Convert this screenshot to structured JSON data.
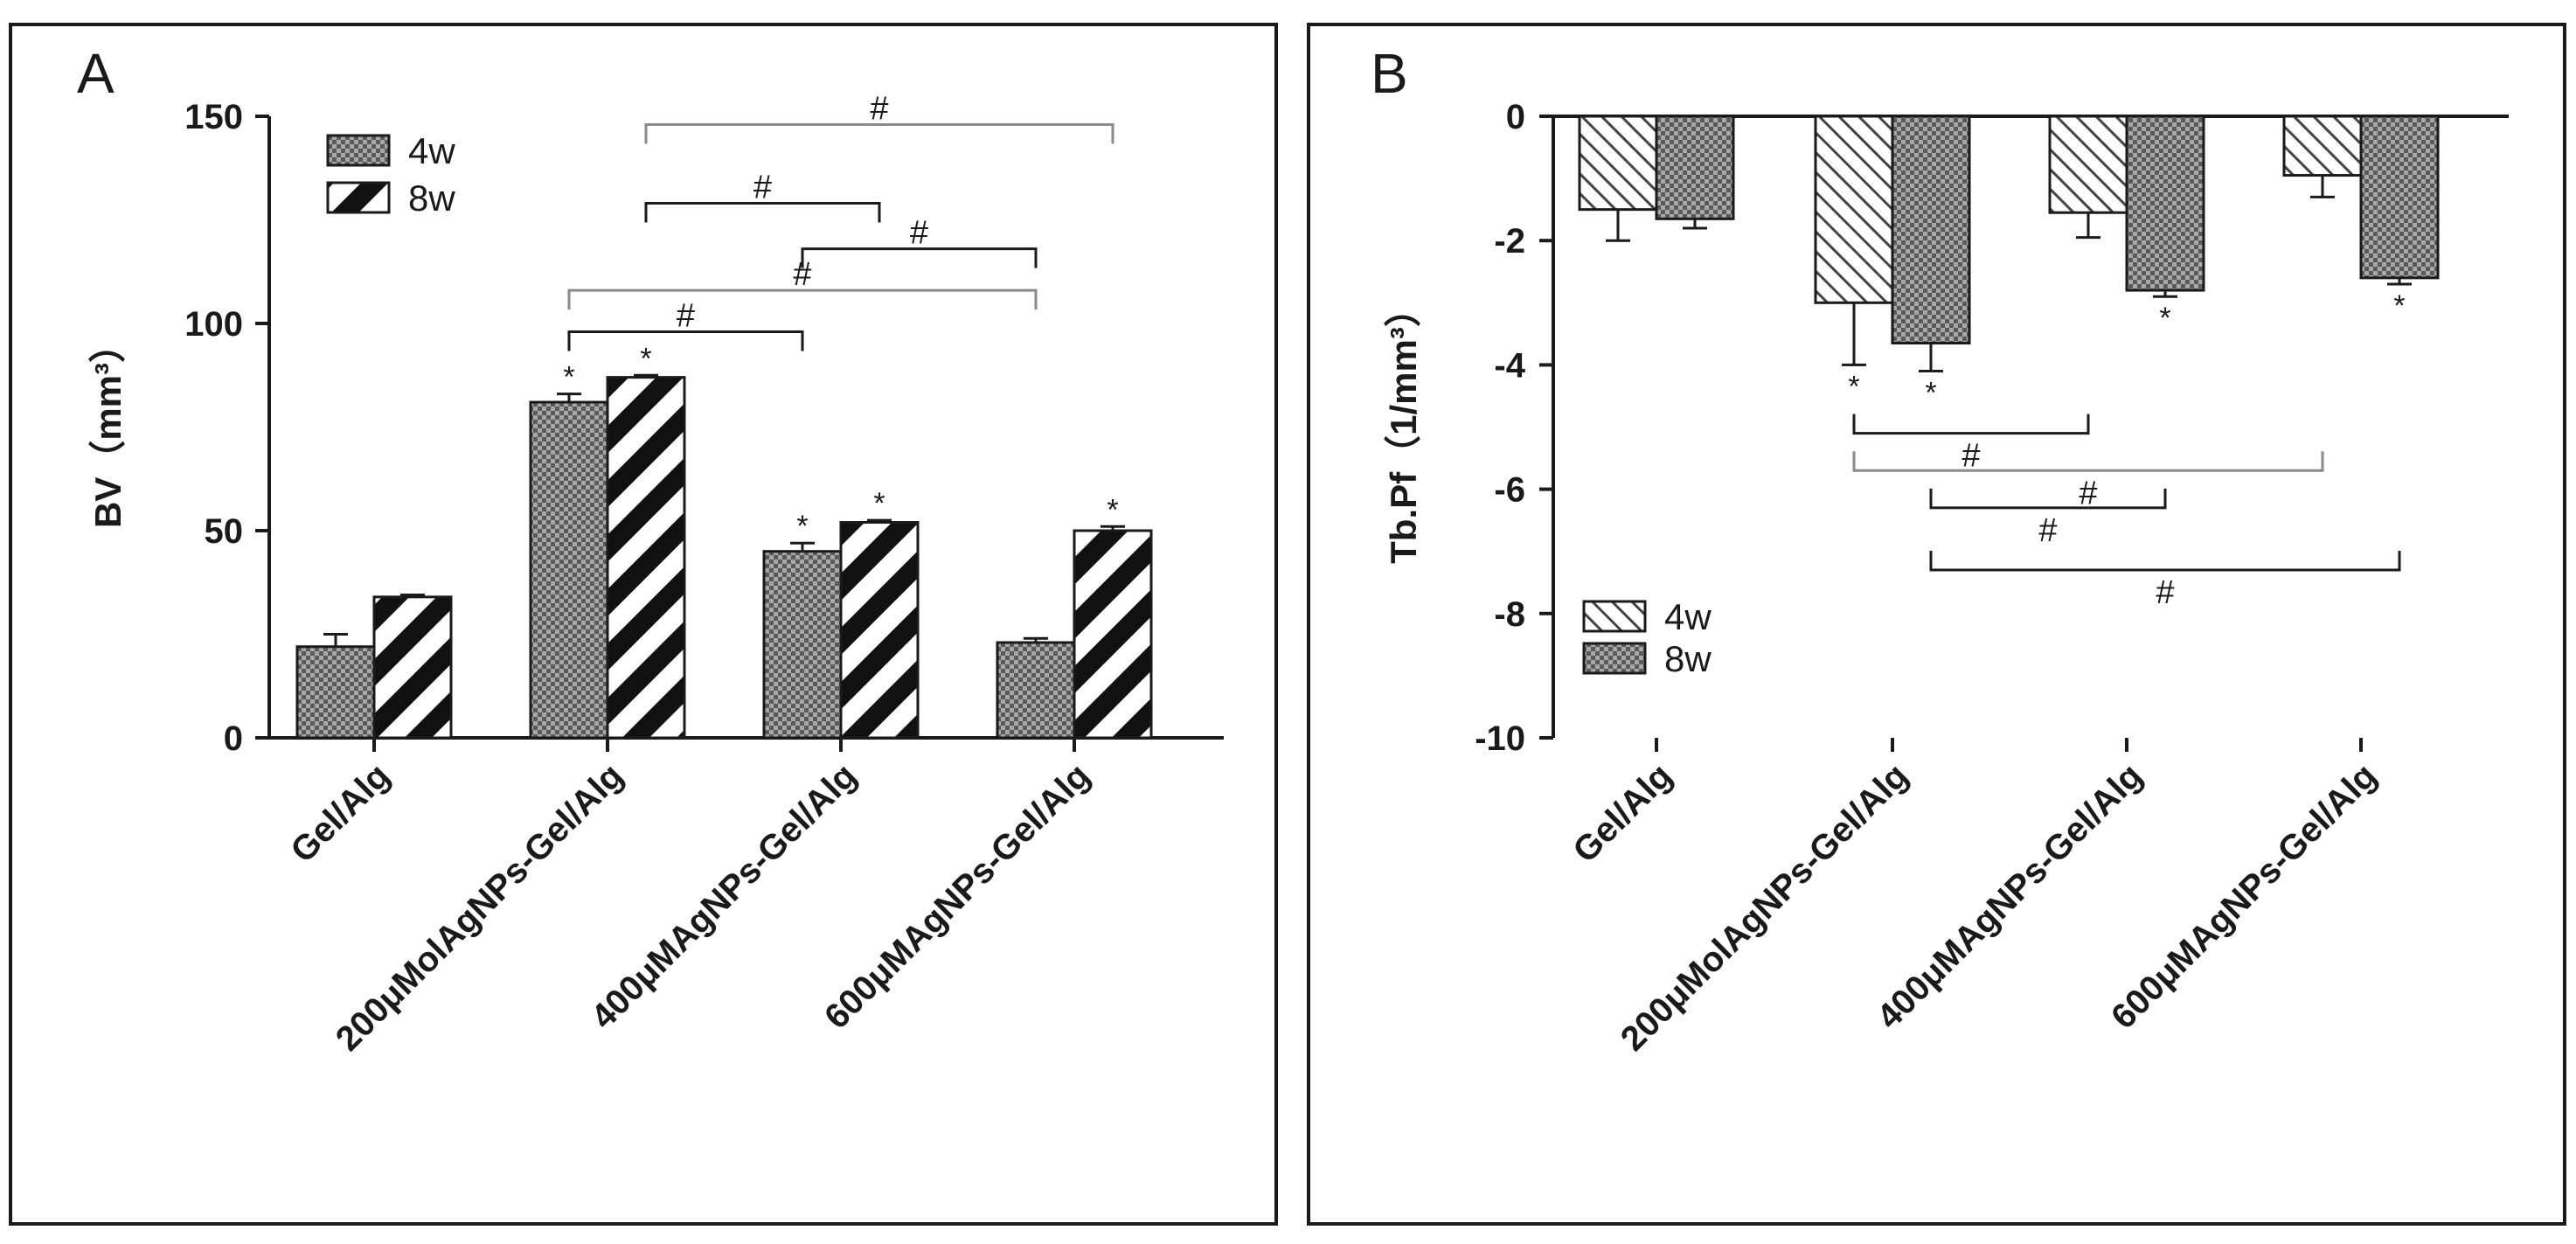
{
  "chart_data": [
    {
      "panel": "A",
      "type": "bar",
      "title": "",
      "xlabel": "",
      "ylabel": "BV（mm³）",
      "ylim": [
        0,
        150
      ],
      "yticks": [
        0,
        50,
        100,
        150
      ],
      "categories": [
        "Gel/Alg",
        "200μMolAgNPs-Gel/Alg",
        "400μMAgNPs-Gel/Alg",
        "600μMAgNPs-Gel/Alg"
      ],
      "series": [
        {
          "name": "4w",
          "pattern": "dots",
          "values": [
            22,
            81,
            45,
            23
          ],
          "errors": [
            3,
            2,
            2,
            1
          ],
          "stars": [
            "",
            "*",
            "*",
            ""
          ]
        },
        {
          "name": "8w",
          "pattern": "diagonal-thick",
          "values": [
            34,
            87,
            52,
            50
          ],
          "errors": [
            0.5,
            0.5,
            0.5,
            1
          ],
          "stars": [
            "",
            "*",
            "*",
            "*"
          ]
        }
      ],
      "legend_position": "top-left",
      "significance": [
        {
          "from": [
            1,
            1
          ],
          "to": [
            3,
            1
          ],
          "label": "#",
          "y": 148,
          "gray": true
        },
        {
          "from": [
            1,
            1
          ],
          "to": [
            2,
            1
          ],
          "label": "#",
          "y": 129,
          "gray": false
        },
        {
          "from": [
            2,
            0
          ],
          "to": [
            3,
            0
          ],
          "label": "#",
          "y": 118,
          "gray": false
        },
        {
          "from": [
            1,
            0
          ],
          "to": [
            3,
            0
          ],
          "label": "#",
          "y": 108,
          "gray": true
        },
        {
          "from": [
            1,
            0
          ],
          "to": [
            2,
            0
          ],
          "label": "#",
          "y": 98,
          "gray": false
        }
      ]
    },
    {
      "panel": "B",
      "type": "bar",
      "title": "",
      "xlabel": "",
      "ylabel": "Tb.Pf（1/mm³）",
      "ylim": [
        -10,
        0
      ],
      "yticks": [
        0,
        -2,
        -4,
        -6,
        -8,
        -10
      ],
      "categories": [
        "Gel/Alg",
        "200μMolAgNPs-Gel/Alg",
        "400μMAgNPs-Gel/Alg",
        "600μMAgNPs-Gel/Alg"
      ],
      "series": [
        {
          "name": "4w",
          "pattern": "diagonal-thin",
          "values": [
            -1.5,
            -3.0,
            -1.55,
            -0.95
          ],
          "errors": [
            0.5,
            1.0,
            0.4,
            0.35
          ],
          "stars": [
            "",
            "*",
            "",
            ""
          ]
        },
        {
          "name": "8w",
          "pattern": "dots",
          "values": [
            -1.65,
            -3.65,
            -2.8,
            -2.6
          ],
          "errors": [
            0.15,
            0.45,
            0.1,
            0.1
          ],
          "stars": [
            "",
            "*",
            "*",
            "*"
          ]
        }
      ],
      "legend_position": "bottom-left",
      "significance": [
        {
          "from": [
            1,
            0
          ],
          "to": [
            2,
            0
          ],
          "label": "#",
          "y": -5.1,
          "gray": false
        },
        {
          "from": [
            1,
            0
          ],
          "to": [
            3,
            0
          ],
          "label": "#",
          "y": -5.7,
          "gray": true
        },
        {
          "from": [
            1,
            1
          ],
          "to": [
            2,
            1
          ],
          "label": "#",
          "y": -6.3,
          "gray": false
        },
        {
          "from": [
            1,
            1
          ],
          "to": [
            3,
            1
          ],
          "label": "#",
          "y": -7.3,
          "gray": false
        }
      ]
    }
  ]
}
